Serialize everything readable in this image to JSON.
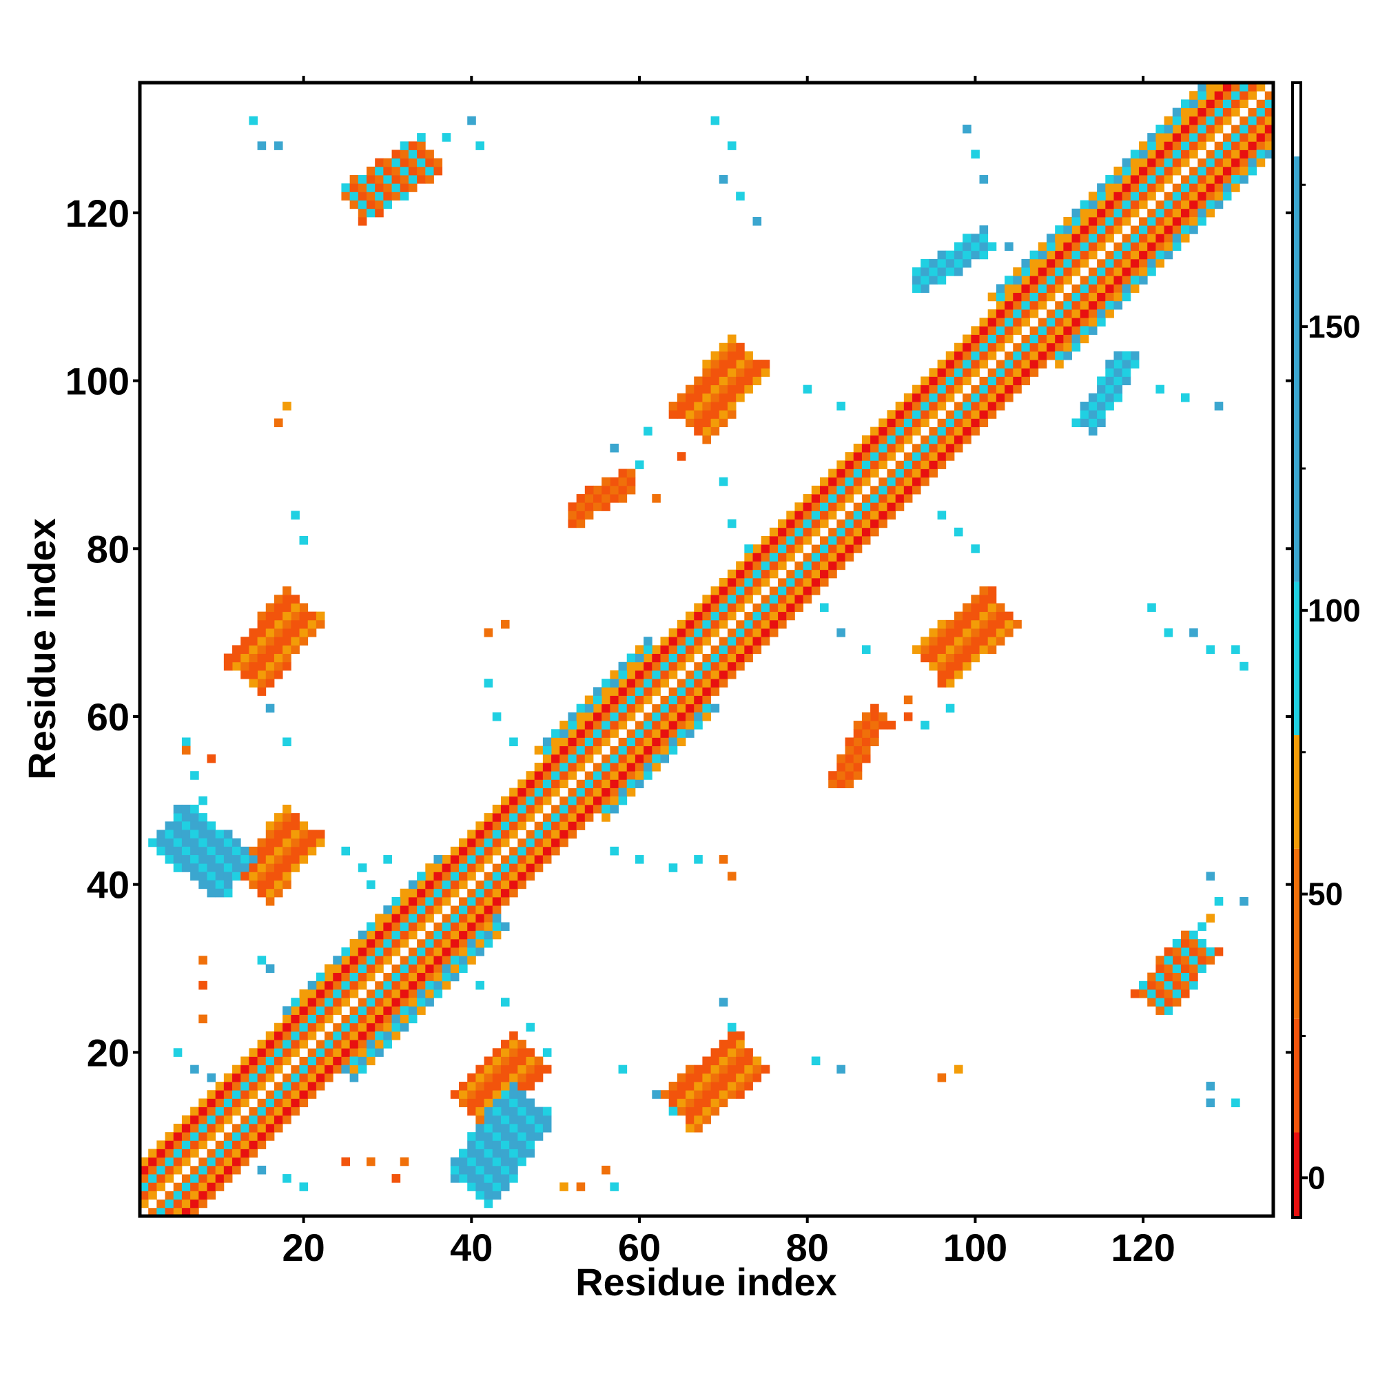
{
  "chart_data": {
    "type": "heatmap",
    "title": "",
    "xlabel": "Residue index",
    "ylabel": "Residue index",
    "xlim": [
      1,
      135
    ],
    "ylim": [
      1,
      135
    ],
    "x_ticks": [
      "20",
      "40",
      "60",
      "80",
      "100",
      "120"
    ],
    "y_ticks": [
      "20",
      "40",
      "60",
      "80",
      "100",
      "120"
    ],
    "colorbar": {
      "ticks": [
        "0",
        "50",
        "100",
        "150"
      ],
      "range": [
        -7,
        193
      ],
      "bands": [
        {
          "from": -7,
          "to": 8,
          "color": "#e81010"
        },
        {
          "from": 8,
          "to": 28,
          "color": "#f2540c"
        },
        {
          "from": 28,
          "to": 58,
          "color": "#f0700a"
        },
        {
          "from": 58,
          "to": 78,
          "color": "#f39c08"
        },
        {
          "from": 78,
          "to": 105,
          "color": "#20d0e2"
        },
        {
          "from": 105,
          "to": 180,
          "color": "#3ba6cf"
        },
        {
          "from": 180,
          "to": 193,
          "color": "#ffffff"
        }
      ]
    },
    "segments": [
      {
        "x0": 1,
        "y0": 1,
        "x1": 135,
        "y1": 135,
        "w": 4,
        "values": [
          2,
          20,
          45,
          62,
          88
        ]
      },
      {
        "x0": 4,
        "y0": 47,
        "x1": 12,
        "y1": 41,
        "w": 3,
        "values": [
          125,
          120,
          88
        ]
      },
      {
        "x0": 40,
        "y0": 4,
        "x1": 47,
        "y1": 14,
        "w": 3,
        "values": [
          125,
          120,
          88
        ]
      },
      {
        "x0": 13,
        "y0": 65,
        "x1": 20,
        "y1": 73,
        "w": 2.5,
        "values": [
          8,
          20,
          45,
          62
        ]
      },
      {
        "x0": 14,
        "y0": 40,
        "x1": 20,
        "y1": 47,
        "w": 2.5,
        "values": [
          8,
          20,
          45,
          62
        ]
      },
      {
        "x0": 40,
        "y0": 13,
        "x1": 47,
        "y1": 20,
        "w": 2.5,
        "values": [
          8,
          20,
          45,
          62
        ]
      },
      {
        "x0": 65,
        "y0": 13,
        "x1": 73,
        "y1": 20,
        "w": 2.5,
        "values": [
          8,
          20,
          45,
          62
        ]
      },
      {
        "x0": 66,
        "y0": 95,
        "x1": 73,
        "y1": 103,
        "w": 2.5,
        "values": [
          8,
          20,
          45,
          62
        ]
      },
      {
        "x0": 95,
        "y0": 66,
        "x1": 103,
        "y1": 73,
        "w": 2.5,
        "values": [
          8,
          20,
          45,
          62
        ]
      },
      {
        "x0": 22,
        "y0": 21,
        "x1": 40,
        "y1": 39,
        "w": 5,
        "values": [
          95,
          110,
          62
        ]
      },
      {
        "x0": 52,
        "y0": 52,
        "x1": 65,
        "y1": 65,
        "w": 5,
        "values": [
          95,
          110,
          62
        ]
      },
      {
        "x0": 77,
        "y0": 77,
        "x1": 95,
        "y1": 95,
        "w": 4,
        "values": [
          95,
          110,
          62
        ]
      },
      {
        "x0": 106,
        "y0": 106,
        "x1": 135,
        "y1": 135,
        "w": 5,
        "values": [
          95,
          110,
          62
        ]
      },
      {
        "x0": 93,
        "y0": 112,
        "x1": 101,
        "y1": 117,
        "w": 1.2,
        "values": [
          125,
          95
        ]
      },
      {
        "x0": 113,
        "y0": 95,
        "x1": 118,
        "y1": 103,
        "w": 1.2,
        "values": [
          125,
          95
        ]
      },
      {
        "x0": 26,
        "y0": 121,
        "x1": 35,
        "y1": 127,
        "w": 2,
        "values": [
          45,
          95,
          20
        ]
      },
      {
        "x0": 121,
        "y0": 26,
        "x1": 127,
        "y1": 33,
        "w": 2,
        "values": [
          45,
          95,
          20
        ]
      },
      {
        "x0": 84,
        "y0": 52,
        "x1": 88,
        "y1": 60,
        "w": 1,
        "values": [
          45,
          20
        ]
      },
      {
        "x0": 52,
        "y0": 84,
        "x1": 59,
        "y1": 88,
        "w": 1,
        "values": [
          45,
          20
        ]
      }
    ],
    "points": [
      [
        14,
        131,
        95
      ],
      [
        15,
        128,
        125
      ],
      [
        17,
        128,
        125
      ],
      [
        40,
        131,
        125
      ],
      [
        37,
        129,
        95
      ],
      [
        41,
        128,
        95
      ],
      [
        69,
        131,
        95
      ],
      [
        71,
        128,
        95
      ],
      [
        70,
        124,
        125
      ],
      [
        72,
        122,
        95
      ],
      [
        74,
        119,
        125
      ],
      [
        99,
        130,
        125
      ],
      [
        100,
        127,
        95
      ],
      [
        101,
        124,
        125
      ],
      [
        104,
        116,
        125
      ],
      [
        107,
        115,
        95
      ],
      [
        118,
        100,
        125
      ],
      [
        122,
        99,
        95
      ],
      [
        125,
        98,
        95
      ],
      [
        129,
        97,
        125
      ],
      [
        18,
        97,
        62
      ],
      [
        17,
        95,
        45
      ],
      [
        19,
        84,
        95
      ],
      [
        20,
        81,
        95
      ],
      [
        6,
        57,
        95
      ],
      [
        7,
        53,
        95
      ],
      [
        8,
        50,
        95
      ],
      [
        6,
        56,
        45
      ],
      [
        9,
        55,
        20
      ],
      [
        16,
        61,
        125
      ],
      [
        18,
        57,
        95
      ],
      [
        22,
        45,
        95
      ],
      [
        25,
        44,
        95
      ],
      [
        27,
        42,
        95
      ],
      [
        30,
        43,
        95
      ],
      [
        28,
        40,
        95
      ],
      [
        8,
        31,
        45
      ],
      [
        8,
        28,
        20
      ],
      [
        8,
        24,
        45
      ],
      [
        15,
        31,
        95
      ],
      [
        16,
        30,
        125
      ],
      [
        5,
        20,
        95
      ],
      [
        7,
        18,
        125
      ],
      [
        9,
        17,
        125
      ],
      [
        13,
        8,
        95
      ],
      [
        15,
        6,
        125
      ],
      [
        18,
        5,
        95
      ],
      [
        20,
        4,
        95
      ],
      [
        25,
        7,
        20
      ],
      [
        28,
        7,
        45
      ],
      [
        32,
        7,
        45
      ],
      [
        31,
        5,
        20
      ],
      [
        42,
        70,
        45
      ],
      [
        44,
        71,
        45
      ],
      [
        42,
        64,
        95
      ],
      [
        43,
        60,
        95
      ],
      [
        45,
        57,
        95
      ],
      [
        39,
        31,
        95
      ],
      [
        41,
        28,
        95
      ],
      [
        44,
        26,
        95
      ],
      [
        47,
        23,
        95
      ],
      [
        49,
        20,
        95
      ],
      [
        51,
        4,
        62
      ],
      [
        53,
        4,
        45
      ],
      [
        56,
        6,
        45
      ],
      [
        57,
        4,
        95
      ],
      [
        57,
        44,
        95
      ],
      [
        60,
        43,
        95
      ],
      [
        64,
        42,
        95
      ],
      [
        67,
        43,
        95
      ],
      [
        70,
        43,
        45
      ],
      [
        71,
        41,
        45
      ],
      [
        62,
        15,
        125
      ],
      [
        64,
        13,
        95
      ],
      [
        70,
        26,
        125
      ],
      [
        71,
        23,
        95
      ],
      [
        58,
        18,
        95
      ],
      [
        81,
        19,
        95
      ],
      [
        84,
        18,
        125
      ],
      [
        96,
        17,
        45
      ],
      [
        98,
        18,
        62
      ],
      [
        54,
        87,
        20
      ],
      [
        56,
        88,
        45
      ],
      [
        58,
        86,
        20
      ],
      [
        60,
        90,
        95
      ],
      [
        62,
        86,
        45
      ],
      [
        65,
        91,
        20
      ],
      [
        61,
        94,
        95
      ],
      [
        57,
        92,
        125
      ],
      [
        70,
        88,
        95
      ],
      [
        71,
        83,
        95
      ],
      [
        73,
        80,
        95
      ],
      [
        74,
        78,
        125
      ],
      [
        80,
        99,
        95
      ],
      [
        84,
        97,
        95
      ],
      [
        87,
        93,
        95
      ],
      [
        90,
        92,
        125
      ],
      [
        82,
        73,
        95
      ],
      [
        84,
        70,
        125
      ],
      [
        87,
        68,
        95
      ],
      [
        88,
        61,
        20
      ],
      [
        90,
        59,
        20
      ],
      [
        92,
        60,
        20
      ],
      [
        94,
        59,
        95
      ],
      [
        97,
        61,
        95
      ],
      [
        92,
        62,
        45
      ],
      [
        96,
        84,
        95
      ],
      [
        98,
        82,
        95
      ],
      [
        100,
        80,
        95
      ],
      [
        121,
        73,
        95
      ],
      [
        123,
        70,
        95
      ],
      [
        126,
        70,
        125
      ],
      [
        128,
        68,
        95
      ],
      [
        131,
        68,
        95
      ],
      [
        132,
        66,
        95
      ],
      [
        128,
        41,
        125
      ],
      [
        129,
        38,
        95
      ],
      [
        132,
        38,
        125
      ],
      [
        128,
        16,
        125
      ],
      [
        128,
        14,
        125
      ],
      [
        131,
        14,
        95
      ],
      [
        127,
        35,
        95
      ],
      [
        128,
        36,
        62
      ]
    ]
  }
}
